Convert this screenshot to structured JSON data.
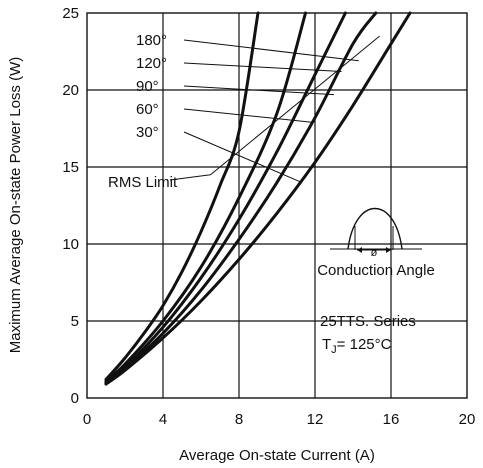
{
  "chart_data": {
    "type": "line",
    "xlabel": "Average On-state Current (A)",
    "ylabel": "Maximum Average On-state Power Loss (W)",
    "xlim": [
      0,
      20
    ],
    "ylim": [
      0,
      25
    ],
    "x_ticks": [
      "0",
      "4",
      "8",
      "12",
      "16",
      "20"
    ],
    "y_ticks": [
      "0",
      "5",
      "10",
      "15",
      "20",
      "25"
    ],
    "grid": true,
    "series_color": "#111111",
    "series": [
      {
        "name": "180°",
        "x": [
          1,
          2,
          3,
          4,
          5,
          6,
          7,
          8,
          9
        ],
        "y": [
          1.2,
          2.6,
          4.2,
          6.0,
          8.2,
          10.8,
          13.8,
          17.3,
          25
        ]
      },
      {
        "name": "120°",
        "x": [
          1,
          2,
          4,
          6,
          8,
          10,
          11.5
        ],
        "y": [
          1.1,
          2.2,
          5.0,
          8.5,
          13.0,
          18.5,
          25
        ]
      },
      {
        "name": "90°",
        "x": [
          1,
          2,
          4,
          6,
          8,
          10,
          12,
          13.6
        ],
        "y": [
          1.0,
          2.0,
          4.6,
          7.8,
          11.6,
          16.0,
          21.0,
          25
        ]
      },
      {
        "name": "60°",
        "x": [
          1,
          2,
          4,
          6,
          8,
          10,
          12,
          14,
          15.2
        ],
        "y": [
          0.95,
          1.9,
          4.2,
          7.0,
          10.3,
          14.0,
          18.2,
          23.0,
          25
        ]
      },
      {
        "name": "30°",
        "x": [
          1,
          2,
          4,
          6,
          8,
          10,
          12,
          14,
          16,
          17
        ],
        "y": [
          0.9,
          1.8,
          3.9,
          6.3,
          9.0,
          12.0,
          15.3,
          19.0,
          23.0,
          25
        ]
      }
    ],
    "rms_limit": {
      "label": "RMS Limit",
      "x": [
        6.5,
        15.4
      ],
      "y": [
        14.5,
        23.5
      ]
    },
    "annotations": {
      "inset_label": "Conduction Angle",
      "inset_symbol": "ø",
      "series_title": "25TTS. Series",
      "tj_prefix": "T",
      "tj_sub": "J",
      "tj_value": "= 125°C"
    }
  }
}
